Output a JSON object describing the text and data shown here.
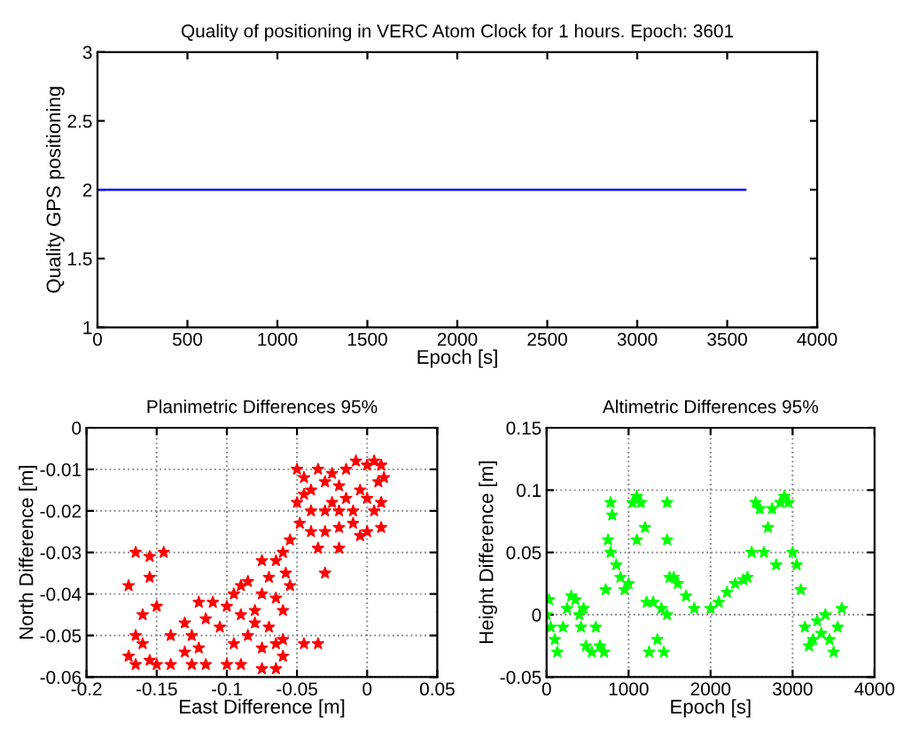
{
  "chart_data": [
    {
      "type": "line",
      "title": "Quality of positioning in VERC Atom Clock for 1 hours. Epoch: 3601",
      "xlabel": "Epoch [s]",
      "ylabel": "Quality GPS positioning",
      "x": [
        0,
        3601
      ],
      "series": [
        {
          "color": "#0000ff",
          "values": [
            2,
            2
          ]
        }
      ],
      "xlim": [
        0,
        4000
      ],
      "ylim": [
        1,
        3
      ],
      "xticks": [
        0,
        500,
        1000,
        1500,
        2000,
        2500,
        3000,
        3500,
        4000
      ],
      "yticks": [
        1,
        1.5,
        2,
        2.5,
        3
      ],
      "grid": false,
      "marker": "none",
      "line_style": "solid"
    },
    {
      "type": "scatter",
      "title": "Planimetric Differences 95%",
      "xlabel": "East Difference [m]",
      "ylabel": "North Difference [m]",
      "marker": "star",
      "grid": true,
      "x": [
        -0.05,
        -0.045,
        -0.04,
        -0.035,
        -0.03,
        -0.025,
        -0.02,
        -0.015,
        -0.008,
        0,
        0.005,
        0.01,
        0.012,
        0.008,
        -0.005,
        0,
        0.01,
        -0.01,
        -0.02,
        -0.03,
        -0.04,
        -0.05,
        -0.048,
        -0.04,
        -0.03,
        -0.02,
        -0.01,
        0,
        0.01,
        -0.045,
        -0.025,
        -0.015,
        0.005,
        -0.005,
        -0.055,
        -0.06,
        -0.065,
        -0.075,
        -0.058,
        -0.055,
        -0.07,
        -0.085,
        -0.09,
        -0.075,
        -0.065,
        -0.06,
        -0.08,
        -0.095,
        -0.1,
        -0.11,
        -0.12,
        -0.035,
        -0.02,
        -0.03,
        -0.165,
        -0.155,
        -0.145,
        -0.17,
        -0.155,
        -0.16,
        -0.15,
        -0.165,
        -0.17,
        -0.16,
        -0.155,
        -0.165,
        -0.15,
        -0.14,
        -0.14,
        -0.13,
        -0.125,
        -0.12,
        -0.13,
        -0.115,
        -0.105,
        -0.095,
        -0.085,
        -0.08,
        -0.075,
        -0.07,
        -0.065,
        -0.06,
        -0.065,
        -0.075,
        -0.09,
        -0.1,
        -0.115,
        -0.125,
        -0.045,
        -0.035,
        -0.06,
        -0.09
      ],
      "series": [
        {
          "color": "#ff0000",
          "values": [
            -0.01,
            -0.012,
            -0.015,
            -0.01,
            -0.013,
            -0.011,
            -0.014,
            -0.01,
            -0.008,
            -0.009,
            -0.008,
            -0.009,
            -0.012,
            -0.013,
            -0.015,
            -0.017,
            -0.018,
            -0.02,
            -0.02,
            -0.02,
            -0.02,
            -0.018,
            -0.023,
            -0.025,
            -0.025,
            -0.024,
            -0.023,
            -0.025,
            -0.024,
            -0.016,
            -0.018,
            -0.017,
            -0.02,
            -0.026,
            -0.027,
            -0.03,
            -0.032,
            -0.032,
            -0.035,
            -0.038,
            -0.036,
            -0.037,
            -0.038,
            -0.04,
            -0.041,
            -0.044,
            -0.044,
            -0.04,
            -0.043,
            -0.042,
            -0.042,
            -0.029,
            -0.029,
            -0.035,
            -0.03,
            -0.031,
            -0.03,
            -0.038,
            -0.036,
            -0.045,
            -0.043,
            -0.05,
            -0.055,
            -0.052,
            -0.056,
            -0.057,
            -0.057,
            -0.057,
            -0.05,
            -0.047,
            -0.05,
            -0.053,
            -0.054,
            -0.046,
            -0.048,
            -0.052,
            -0.05,
            -0.047,
            -0.053,
            -0.048,
            -0.052,
            -0.055,
            -0.058,
            -0.058,
            -0.057,
            -0.057,
            -0.057,
            -0.057,
            -0.052,
            -0.052,
            -0.051,
            -0.045
          ]
        }
      ],
      "xlim": [
        -0.2,
        0.05
      ],
      "ylim": [
        -0.06,
        0
      ],
      "xticks": [
        -0.2,
        -0.15,
        -0.1,
        -0.05,
        0,
        0.05
      ],
      "yticks": [
        -0.06,
        -0.05,
        -0.04,
        -0.03,
        -0.02,
        -0.01,
        0
      ]
    },
    {
      "type": "scatter",
      "title": "Altimetric Differences 95%",
      "xlabel": "Epoch [s]",
      "ylabel": "Height Difference [m]",
      "marker": "star",
      "grid": true,
      "x": [
        0,
        30,
        50,
        100,
        130,
        200,
        250,
        300,
        350,
        400,
        420,
        450,
        480,
        550,
        600,
        650,
        700,
        720,
        750,
        780,
        780,
        800,
        850,
        900,
        950,
        1000,
        1050,
        1100,
        1100,
        1150,
        1200,
        1220,
        1250,
        1300,
        1350,
        1400,
        1430,
        1470,
        1470,
        1470,
        1500,
        1550,
        1600,
        1700,
        1800,
        2000,
        2100,
        2200,
        2300,
        2400,
        2450,
        2500,
        2550,
        2600,
        2650,
        2700,
        2750,
        2800,
        2850,
        2900,
        2950,
        3000,
        3050,
        3100,
        3150,
        3200,
        3250,
        3300,
        3350,
        3400,
        3450,
        3500,
        3550,
        3600
      ],
      "series": [
        {
          "color": "#00ff00",
          "values": [
            0.0,
            0.012,
            -0.01,
            -0.02,
            -0.03,
            -0.01,
            0.005,
            0.015,
            0.012,
            0.0,
            -0.01,
            0.005,
            -0.025,
            -0.03,
            -0.01,
            -0.025,
            -0.03,
            0.02,
            0.06,
            0.09,
            0.05,
            0.08,
            0.04,
            0.03,
            0.02,
            0.025,
            0.09,
            0.095,
            0.06,
            0.09,
            0.07,
            0.01,
            -0.03,
            0.01,
            -0.02,
            0.005,
            -0.03,
            0.09,
            0.06,
            0.0,
            0.03,
            0.03,
            0.025,
            0.015,
            0.005,
            0.005,
            0.01,
            0.018,
            0.025,
            0.028,
            0.03,
            0.05,
            0.09,
            0.085,
            0.05,
            0.07,
            0.085,
            0.04,
            0.09,
            0.095,
            0.09,
            0.05,
            0.04,
            0.02,
            -0.01,
            -0.025,
            -0.02,
            -0.005,
            -0.015,
            0.0,
            -0.02,
            -0.03,
            -0.01,
            0.005
          ]
        }
      ],
      "xlim": [
        0,
        4000
      ],
      "ylim": [
        -0.05,
        0.15
      ],
      "xticks": [
        0,
        1000,
        2000,
        3000,
        4000
      ],
      "yticks": [
        -0.05,
        0,
        0.05,
        0.1,
        0.15
      ]
    }
  ]
}
